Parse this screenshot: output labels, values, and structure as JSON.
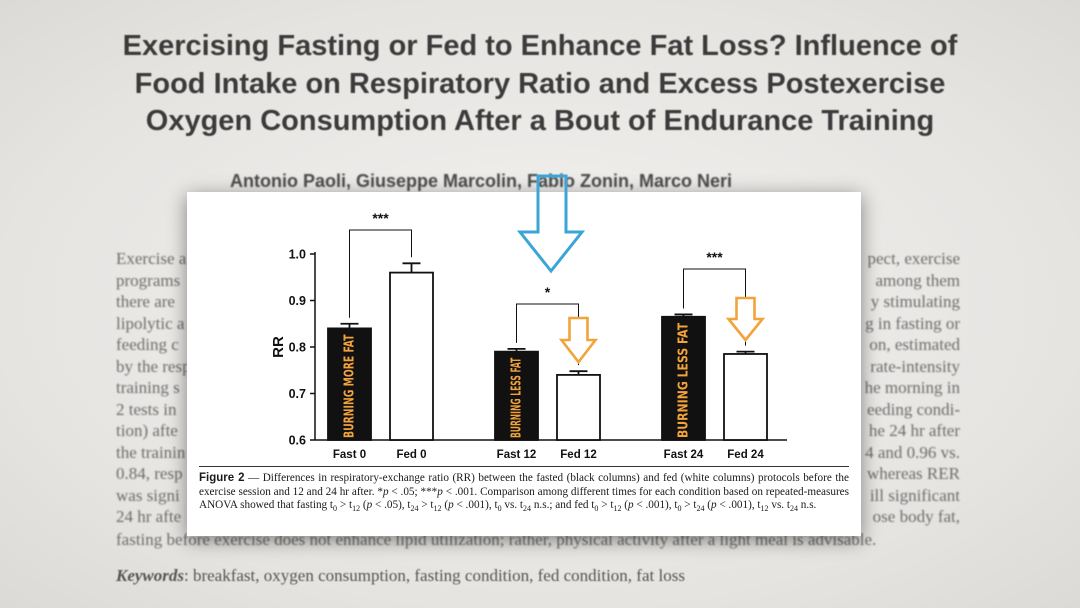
{
  "paper": {
    "title_lines": [
      "Exercising Fasting or Fed to Enhance Fat Loss? Influence of",
      "Food Intake on Respiratory Ratio and Excess Postexercise",
      "Oxygen Consumption After a Bout of Endurance Training"
    ],
    "authors": "Antonio Paoli, Giuseppe Marcolin, Fabio Zonin, Marco Neri",
    "abstract_left": [
      "Exercise a",
      "programs",
      "there are",
      "lipolytic a",
      "feeding c",
      "by the resp",
      "training s",
      "2 tests in",
      "tion) afte",
      "the trainin",
      "0.84, resp",
      "was signi",
      "24 hr afte"
    ],
    "abstract_right": [
      "pect, exercise",
      "among them",
      "y stimulating",
      "g in fasting or",
      "on, estimated",
      "rate-intensity",
      "he morning in",
      "eeding condi-",
      "he 24 hr after",
      "4 and 0.96 vs.",
      "whereas RER",
      "ill significant",
      "ose body fat,"
    ],
    "abstract_last": "fasting before exercise does not enhance lipid utilization; rather, physical activity after a light meal is advisable.",
    "keywords_label": "Keywords",
    "keywords": ": breakfast, oxygen consumption, fasting condition, fed condition, fat loss"
  },
  "figure": {
    "caption_label": "Figure 2",
    "caption_html": " — Differences in respiratory-exchange ratio (RR) between the fasted (black columns) and fed (white columns) protocols before the exercise session and 12 and 24 hr after. *<i>p</i> &lt; .05; ***<i>p</i> &lt; .001. Comparison among different times for each condition based on repeated-measures ANOVA showed that fasting t<sub>0</sub> &gt; t<sub>12</sub> (<i>p</i> &lt; .05), t<sub>24</sub> &gt; t<sub>12</sub> (<i>p</i> &lt; .001), t<sub>0</sub> vs. t<sub>24</sub> n.s.; and fed t<sub>0</sub> &gt; t<sub>12</sub> (<i>p</i> &lt; .001), t<sub>0</sub> &gt; t<sub>24</sub> (<i>p</i> &lt; .001), t<sub>12</sub> vs. t<sub>24</sub> n.s.",
    "overlay_labels": [
      "BURNING MORE FAT",
      "BURNING LESS FAT",
      "BURNING LESS FAT"
    ]
  },
  "chart_data": {
    "type": "bar",
    "ylabel": "RR",
    "ylim": [
      0.6,
      1.0
    ],
    "yticks": [
      "0.6",
      "0.7",
      "0.8",
      "0.9",
      "1.0"
    ],
    "categories": [
      "Fast 0",
      "Fed 0",
      "Fast 12",
      "Fed 12",
      "Fast 24",
      "Fed 24"
    ],
    "values": [
      0.84,
      0.96,
      0.79,
      0.74,
      0.865,
      0.785
    ],
    "errors": [
      0.01,
      0.02,
      0.006,
      0.008,
      0.005,
      0.005
    ],
    "fill": [
      "black",
      "white",
      "black",
      "white",
      "black",
      "white"
    ],
    "significance": [
      {
        "pair": [
          0,
          1
        ],
        "label": "***"
      },
      {
        "pair": [
          2,
          3
        ],
        "label": "*"
      },
      {
        "pair": [
          4,
          5
        ],
        "label": "***"
      }
    ],
    "colors": {
      "bar_dark": "#111111",
      "overlay_text": "#f2a33a",
      "arrow_orange": "#f2a33a",
      "arrow_blue": "#3aa6d8"
    }
  }
}
